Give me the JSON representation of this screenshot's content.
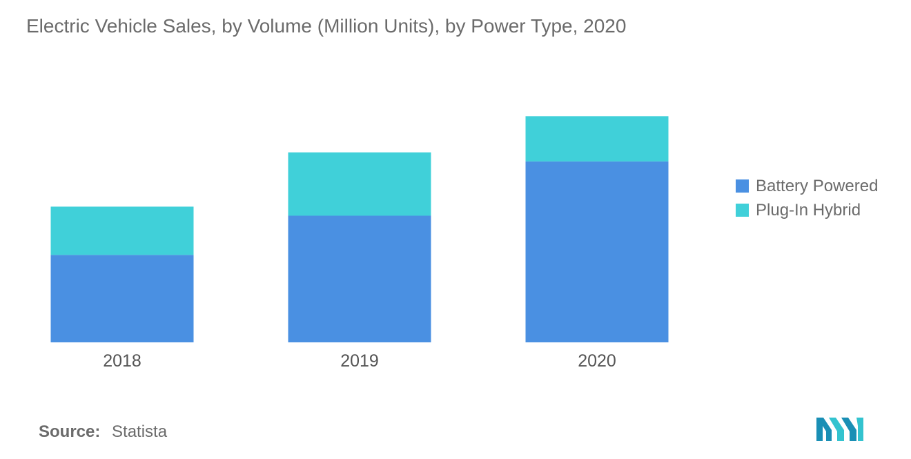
{
  "title": "Electric Vehicle Sales, by Volume (Million Units), by Power Type, 2020",
  "chart_data": {
    "type": "bar",
    "stacked": true,
    "title": "Electric Vehicle Sales, by Volume (Million Units), by Power Type, 2020",
    "xlabel": "",
    "ylabel": "",
    "categories": [
      "2018",
      "2019",
      "2020"
    ],
    "series": [
      {
        "name": "Battery Powered",
        "color": "#4a90e2",
        "values": [
          1.45,
          2.1,
          3.0
        ]
      },
      {
        "name": "Plug-In Hybrid",
        "color": "#40d0d9",
        "values": [
          0.8,
          1.05,
          0.75
        ]
      }
    ],
    "ylim": [
      0,
      4.2
    ],
    "grid": false,
    "legend_position": "right"
  },
  "source": {
    "label": "Source:",
    "value": "Statista"
  },
  "logo": {
    "icon": "mordor-intelligence-logo"
  }
}
